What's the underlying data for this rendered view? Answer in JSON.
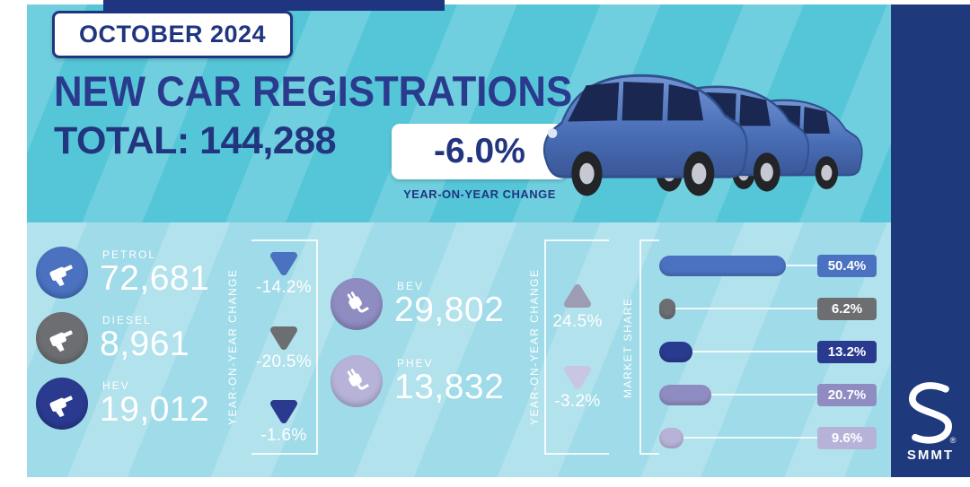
{
  "header": {
    "date_badge": "OCTOBER 2024",
    "title": "NEW CAR REGISTRATIONS",
    "total_label": "TOTAL:",
    "total_value": "144,288",
    "yoy_badge": "-6.0%",
    "yoy_caption": "YEAR-ON-YEAR CHANGE"
  },
  "fuel_left": {
    "axis_label": "YEAR-ON-YEAR CHANGE",
    "rows": [
      {
        "label": "PETROL",
        "value": "72,681",
        "yoy": "-14.2%",
        "direction": "down",
        "color": "#4a72c0"
      },
      {
        "label": "DIESEL",
        "value": "8,961",
        "yoy": "-20.5%",
        "direction": "down",
        "color": "#6d6e71"
      },
      {
        "label": "HEV",
        "value": "19,012",
        "yoy": "-1.6%",
        "direction": "down",
        "color": "#2a3a8f"
      }
    ]
  },
  "fuel_mid": {
    "axis_label": "YEAR-ON-YEAR CHANGE",
    "rows": [
      {
        "label": "BEV",
        "value": "29,802",
        "yoy": "24.5%",
        "direction": "up",
        "color": "#8f8cc2",
        "arrow_color": "#9e9bb4"
      },
      {
        "label": "PHEV",
        "value": "13,832",
        "yoy": "-3.2%",
        "direction": "down",
        "color": "#b7b3d8",
        "arrow_color": "#c9c6e2"
      }
    ]
  },
  "market_share": {
    "axis_label": "MARKET SHARE",
    "rows": [
      {
        "label": "50.4%",
        "value": 50.4,
        "color": "#4a72c0"
      },
      {
        "label": "6.2%",
        "value": 6.2,
        "color": "#6d6e71"
      },
      {
        "label": "13.2%",
        "value": 13.2,
        "color": "#2a3a8f"
      },
      {
        "label": "20.7%",
        "value": 20.7,
        "color": "#8f8cc2"
      },
      {
        "label": "9.6%",
        "value": 9.6,
        "color": "#b7b3d8"
      }
    ]
  },
  "brand": {
    "name": "SMMT",
    "registered": "®"
  },
  "colors": {
    "navy_text": "#22357f",
    "brand_band": "#1e3a7c",
    "header_teal": "#55c6d8",
    "body_teal": "#9fdbe8"
  },
  "chart_data": {
    "type": "bar",
    "title": "NEW CAR REGISTRATIONS",
    "period": "OCTOBER 2024",
    "total_registrations": 144288,
    "total_yoy_change_pct": -6.0,
    "categories": [
      "PETROL",
      "DIESEL",
      "HEV",
      "BEV",
      "PHEV"
    ],
    "series": [
      {
        "name": "Registrations",
        "values": [
          72681,
          8961,
          19012,
          29802,
          13832
        ]
      },
      {
        "name": "Year-on-year change %",
        "values": [
          -14.2,
          -20.5,
          -1.6,
          24.5,
          -3.2
        ]
      },
      {
        "name": "Market share %",
        "values": [
          50.4,
          6.2,
          13.2,
          20.7,
          9.6
        ]
      }
    ],
    "legend_position": "none",
    "grid": false
  }
}
